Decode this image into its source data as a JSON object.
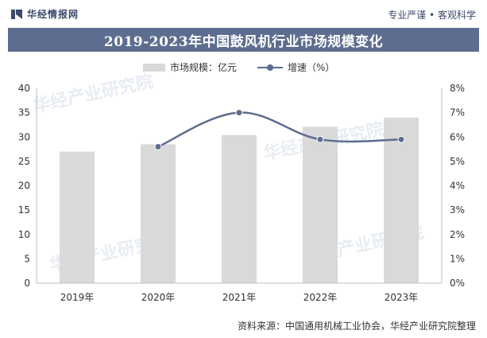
{
  "header": {
    "brand": "华经情报网",
    "tagline": "专业严谨 • 客观科学"
  },
  "title": "2019-2023年中国鼓风机行业市场规模变化",
  "legend": {
    "bar_label": "市场规模：亿元",
    "line_label": "增速（%）"
  },
  "source": "资料来源：中国通用机械工业协会，华经产业研究院整理",
  "watermark": "华经产业研究院",
  "colors": {
    "bar": "#d9d9d9",
    "line": "#5c6d8f",
    "title_bg": "#5c6d8f",
    "axis": "#bfbfbf"
  },
  "chart_data": {
    "type": "bar",
    "categories": [
      "2019年",
      "2020年",
      "2021年",
      "2022年",
      "2023年"
    ],
    "series": [
      {
        "name": "市场规模：亿元",
        "type": "bar",
        "axis": "left",
        "values": [
          27.0,
          28.5,
          30.4,
          32.1,
          34.0
        ]
      },
      {
        "name": "增速（%）",
        "type": "line",
        "axis": "right",
        "values": [
          null,
          5.6,
          7.0,
          5.9,
          5.9
        ]
      }
    ],
    "y_left": {
      "min": 0,
      "max": 40,
      "ticks": [
        "0",
        "5",
        "10",
        "15",
        "20",
        "25",
        "30",
        "35",
        "40"
      ]
    },
    "y_right": {
      "min": 0,
      "max": 8,
      "ticks": [
        "0%",
        "1%",
        "2%",
        "3%",
        "4%",
        "5%",
        "6%",
        "7%",
        "8%"
      ]
    },
    "legend_position": "top-center",
    "grid": false
  }
}
